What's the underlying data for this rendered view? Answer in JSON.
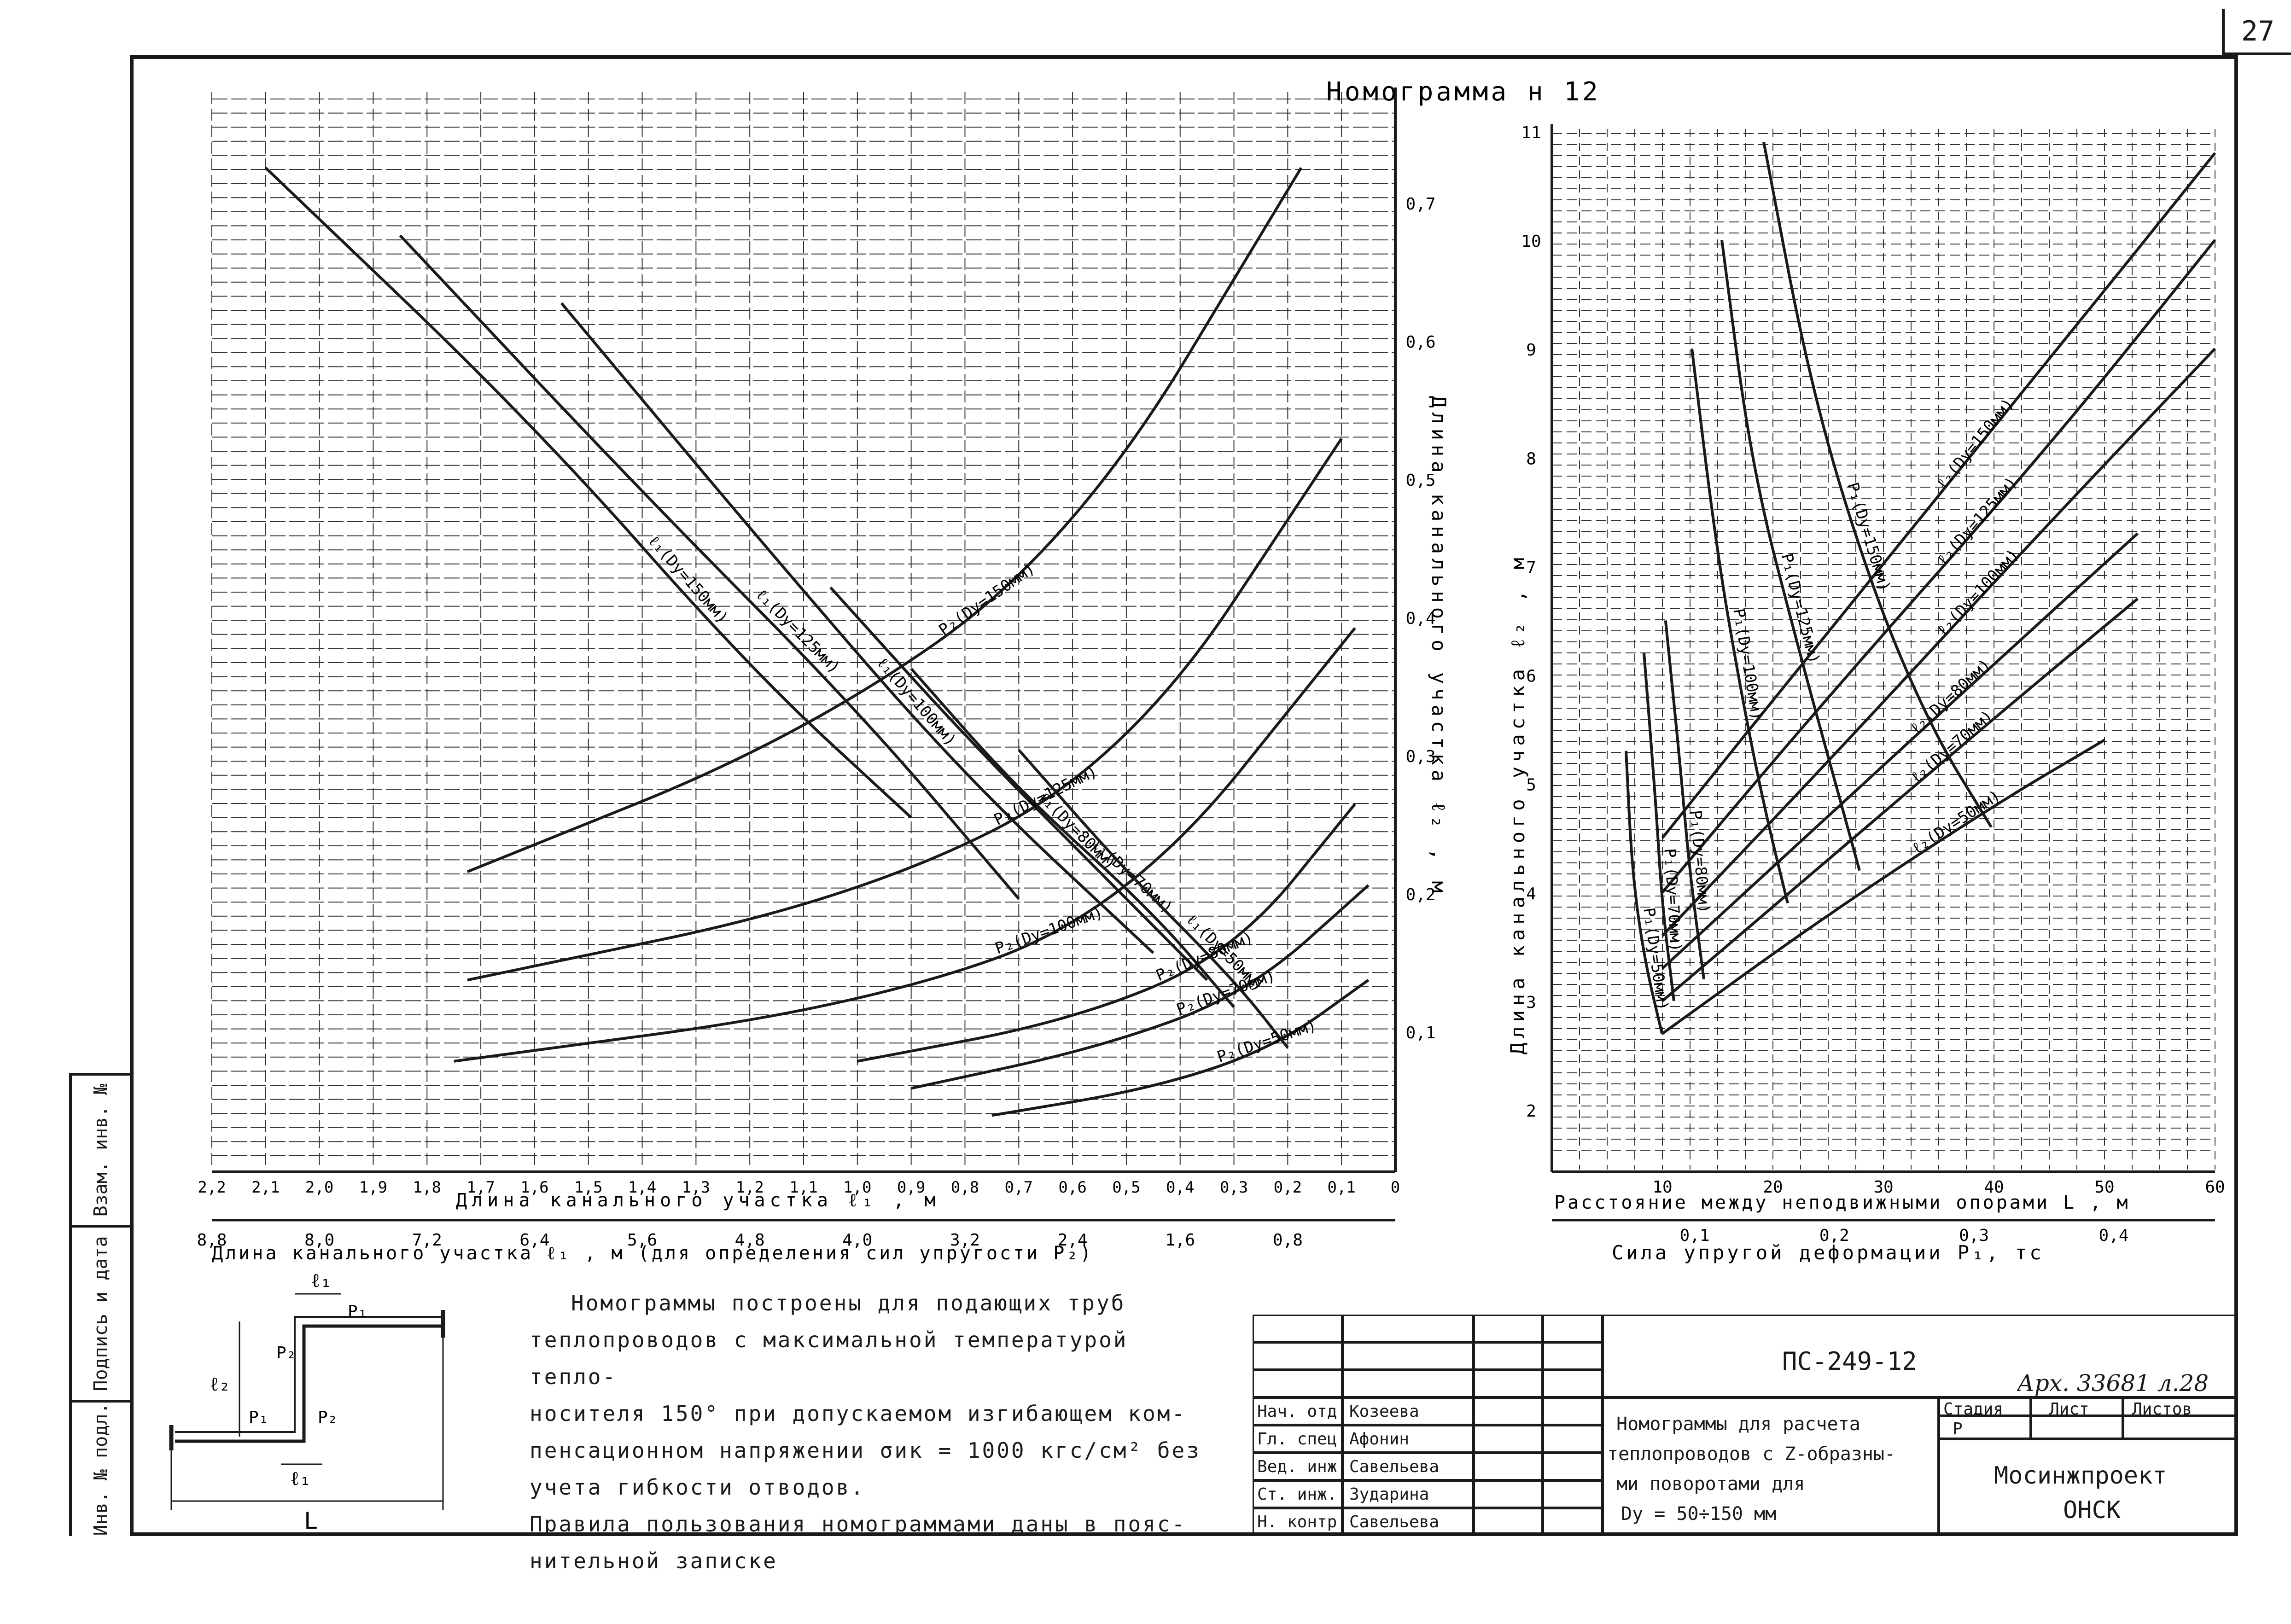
{
  "page_number": "27",
  "nomogram_title": "Номограмма н 12",
  "left_panel": {
    "bottom_axis_label": "Длина канального участка ℓ₁ , м",
    "bottom_ticks": [
      "2,2",
      "2,1",
      "2,0",
      "1,9",
      "1,8",
      "1,7",
      "1,6",
      "1,5",
      "1,4",
      "1,3",
      "1,2",
      "1,1",
      "1,0",
      "0,9",
      "0,8",
      "0,7",
      "0,6",
      "0,5",
      "0,4",
      "0,3",
      "0,2",
      "0,1",
      "0"
    ],
    "second_axis_label": "Длина канального участка ℓ₁ , м  (для определения сил упругости  P₂)",
    "second_ticks": [
      "8,8",
      "8,0",
      "7,2",
      "6,4",
      "5,6",
      "4,8",
      "4,0",
      "3,2",
      "2,4",
      "1,6",
      "0,8"
    ],
    "right_axis_label": "Длина канального участка ℓ₂ , м",
    "right_ticks": [
      "0,7",
      "0,6",
      "0,5",
      "0,4",
      "0,3",
      "0,2",
      "0,1"
    ]
  },
  "right_panel": {
    "left_axis_label": "Длина канального участка ℓ₂ , м",
    "left_ticks": [
      "11",
      "10",
      "9",
      "8",
      "7",
      "6",
      "5",
      "4",
      "3",
      "2"
    ],
    "bottom_axis_label": "Расстояние между неподвижными опорами L , м",
    "bottom_ticks": [
      "10",
      "20",
      "30",
      "40",
      "50",
      "60"
    ],
    "second_axis_label": "Сила упругой деформации P₁, тс",
    "second_ticks": [
      "0,1",
      "0,2",
      "0,3",
      "0,4"
    ]
  },
  "chart_data": [
    {
      "type": "line",
      "panel": "left",
      "xlabel": "Длина канального участка ℓ₁ , м",
      "ylabel": "Длина канального участка ℓ₂ , м",
      "xlim": [
        2.2,
        0
      ],
      "ylim": [
        0,
        0.75
      ],
      "grid": true,
      "series": [
        {
          "name": "ℓ₁(Dу=150мм)",
          "x": [
            2.1,
            1.6,
            1.2,
            0.9
          ],
          "y": [
            0.74,
            0.55,
            0.37,
            0.26
          ]
        },
        {
          "name": "ℓ₁(Dу=125мм)",
          "x": [
            1.85,
            1.4,
            1.0,
            0.7
          ],
          "y": [
            0.69,
            0.5,
            0.34,
            0.2
          ]
        },
        {
          "name": "ℓ₁(Dу=100мм)",
          "x": [
            1.55,
            1.15,
            0.8,
            0.45
          ],
          "y": [
            0.64,
            0.45,
            0.29,
            0.16
          ]
        },
        {
          "name": "ℓ₁(Dу=80мм)",
          "x": [
            1.05,
            0.8,
            0.55,
            0.35
          ],
          "y": [
            0.43,
            0.32,
            0.22,
            0.14
          ]
        },
        {
          "name": "ℓ₁(Dу=70мм)",
          "x": [
            0.9,
            0.7,
            0.45,
            0.3
          ],
          "y": [
            0.37,
            0.28,
            0.19,
            0.12
          ]
        },
        {
          "name": "ℓ₁(Dу=50мм)",
          "x": [
            0.7,
            0.5,
            0.3,
            0.2
          ],
          "y": [
            0.31,
            0.22,
            0.14,
            0.09
          ]
        }
      ]
    },
    {
      "type": "line",
      "panel": "left-P2",
      "xlabel": "Длина канального участка ℓ₁ , м  (для определения сил упругости  P₂)",
      "ylabel": "Длина канального участка ℓ₂ , м",
      "xlim": [
        8.8,
        0
      ],
      "ylim": [
        0,
        0.75
      ],
      "series": [
        {
          "name": "P₂(Dу=150мм)",
          "x": [
            6.9,
            4.4,
            2.4,
            0.7
          ],
          "y": [
            0.22,
            0.32,
            0.46,
            0.74
          ]
        },
        {
          "name": "P₂(Dу=125мм)",
          "x": [
            6.9,
            4.0,
            2.0,
            0.4
          ],
          "y": [
            0.14,
            0.2,
            0.3,
            0.54
          ]
        },
        {
          "name": "P₂(Dу=100мм)",
          "x": [
            7.0,
            4.0,
            2.0,
            0.3
          ],
          "y": [
            0.08,
            0.12,
            0.19,
            0.4
          ]
        },
        {
          "name": "P₂(Dу=80мм)",
          "x": [
            4.0,
            2.4,
            1.2,
            0.3
          ],
          "y": [
            0.08,
            0.11,
            0.16,
            0.27
          ]
        },
        {
          "name": "P₂(Dу=70мм)",
          "x": [
            3.6,
            2.2,
            1.1,
            0.2
          ],
          "y": [
            0.06,
            0.09,
            0.13,
            0.21
          ]
        },
        {
          "name": "P₂(Dу=50мм)",
          "x": [
            3.0,
            1.8,
            0.9,
            0.2
          ],
          "y": [
            0.04,
            0.06,
            0.09,
            0.14
          ]
        }
      ]
    },
    {
      "type": "line",
      "panel": "right",
      "xlabel": "Расстояние между неподвижными опорами L , м",
      "ylabel": "Длина канального участка ℓ₂ , м",
      "xlim": [
        0,
        60
      ],
      "ylim": [
        1.5,
        11
      ],
      "grid": true,
      "series": [
        {
          "name": "ℓ₂(Dу=150мм)",
          "x": [
            10,
            25,
            45,
            60
          ],
          "y": [
            4.5,
            6.4,
            8.9,
            10.8
          ]
        },
        {
          "name": "ℓ₂(Dу=125мм)",
          "x": [
            10,
            25,
            45,
            60
          ],
          "y": [
            4.0,
            5.8,
            8.1,
            10.0
          ]
        },
        {
          "name": "ℓ₂(Dу=100мм)",
          "x": [
            10,
            25,
            45,
            60
          ],
          "y": [
            3.6,
            5.2,
            7.4,
            9.0
          ]
        },
        {
          "name": "ℓ₂(Dу=80мм)",
          "x": [
            10,
            25,
            40,
            53
          ],
          "y": [
            3.3,
            4.7,
            6.1,
            7.3
          ]
        },
        {
          "name": "ℓ₂(Dу=70мм)",
          "x": [
            10,
            25,
            40,
            53
          ],
          "y": [
            3.0,
            4.3,
            5.6,
            6.7
          ]
        },
        {
          "name": "ℓ₂(Dу=50мм)",
          "x": [
            10,
            25,
            40,
            50
          ],
          "y": [
            2.7,
            3.8,
            4.8,
            5.4
          ]
        }
      ]
    },
    {
      "type": "line",
      "panel": "right-P1",
      "xlabel": "Сила упругой деформации P₁, тс",
      "ylabel": "Длина канального участка ℓ₂ , м",
      "xlim": [
        0,
        0.45
      ],
      "ylim": [
        1.5,
        11
      ],
      "series": [
        {
          "name": "P₁(Dу=150мм)",
          "x": [
            0.15,
            0.19,
            0.24,
            0.29,
            0.34
          ],
          "y": [
            10.9,
            8.6,
            6.8,
            5.5,
            4.6
          ]
        },
        {
          "name": "P₁(Dу=125мм)",
          "x": [
            0.115,
            0.14,
            0.18,
            0.21,
            0.23
          ],
          "y": [
            10.0,
            7.9,
            6.2,
            5.0,
            4.2
          ]
        },
        {
          "name": "P₁(Dу=100мм)",
          "x": [
            0.09,
            0.11,
            0.13,
            0.15,
            0.17
          ],
          "y": [
            9.0,
            7.2,
            5.9,
            4.8,
            3.9
          ]
        },
        {
          "name": "P₁(Dу=80мм)",
          "x": [
            0.068,
            0.08,
            0.088,
            0.1
          ],
          "y": [
            6.5,
            5.2,
            4.2,
            3.2
          ]
        },
        {
          "name": "P₁(Dу=70мм)",
          "x": [
            0.05,
            0.06,
            0.065,
            0.075
          ],
          "y": [
            6.2,
            4.8,
            3.9,
            3.0
          ]
        },
        {
          "name": "P₁(Dу=50мм)",
          "x": [
            0.035,
            0.04,
            0.05,
            0.065
          ],
          "y": [
            5.3,
            4.2,
            3.4,
            2.7
          ]
        }
      ]
    }
  ],
  "note": {
    "line1": "Номограммы построены для подающих труб",
    "line2": "теплопроводов с максимальной температурой тепло-",
    "line3": "носителя 150° при допускаемом изгибающем ком-",
    "line4": "пенсационном напряжении σик = 1000 кгс/см² без",
    "line5": "учета гибкости отводов.",
    "line6": "Правила пользования номограммами даны в пояс-",
    "line7": "нительной записке"
  },
  "sketch": {
    "l1_top": "ℓ₁",
    "l1_bottom": "ℓ₁",
    "l2": "ℓ₂",
    "p1_top": "P₁",
    "p1_left": "P₁",
    "p2_top": "P₂",
    "p2_right": "P₂",
    "L": "L"
  },
  "side_strip": {
    "cell1": "Взам. инв. №",
    "cell2": "Подпись и дата",
    "cell3": "Инв. № подл."
  },
  "stamp": {
    "doc_code": "ПС-249-12",
    "archive_number": "Арх. 33681 л.28",
    "roles": [
      "Нач. отд.",
      "Гл. спец.",
      "Вед. инж.",
      "Ст. инж.",
      "",
      "Н. контр."
    ],
    "names": [
      "Козеева",
      "Афонин",
      "Савельева",
      "Зударина",
      "",
      "Савельева"
    ],
    "title_line1": "Номограммы для расчета",
    "title_line2": "теплопроводов с Z-образны-",
    "title_line3": "ми поворотами для",
    "title_line4": "Dу = 50÷150 мм",
    "col_stage": "Стадия",
    "col_sheet": "Лист",
    "col_sheets": "Листов",
    "stage_value": "Р",
    "org_line1": "Мосинжпроект",
    "org_line2": "ОНСК"
  }
}
